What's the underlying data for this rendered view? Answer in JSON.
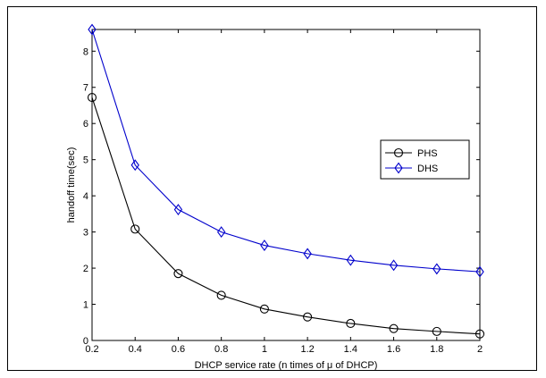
{
  "chart_data": {
    "type": "line",
    "xlabel": "DHCP service rate (n times of μ of DHCP)",
    "ylabel": "handoff time(sec)",
    "xlim": [
      0.2,
      2
    ],
    "ylim": [
      0,
      8.6
    ],
    "x": [
      0.2,
      0.4,
      0.6,
      0.8,
      1.0,
      1.2,
      1.4,
      1.6,
      1.8,
      2.0
    ],
    "xticks": [
      "0.2",
      "0.4",
      "0.6",
      "0.8",
      "1",
      "1.2",
      "1.4",
      "1.6",
      "1.8",
      "2"
    ],
    "yticks": [
      "0",
      "1",
      "2",
      "3",
      "4",
      "5",
      "6",
      "7",
      "8"
    ],
    "grid": false,
    "legend_position": "right",
    "series": [
      {
        "name": "PHS",
        "color": "#000000",
        "marker": "circle",
        "values": [
          6.72,
          3.08,
          1.85,
          1.25,
          0.87,
          0.65,
          0.47,
          0.33,
          0.25,
          0.18
        ]
      },
      {
        "name": "DHS",
        "color": "#0000cc",
        "marker": "diamond",
        "values": [
          8.6,
          4.85,
          3.62,
          3.0,
          2.63,
          2.4,
          2.22,
          2.08,
          1.98,
          1.9
        ]
      }
    ]
  }
}
